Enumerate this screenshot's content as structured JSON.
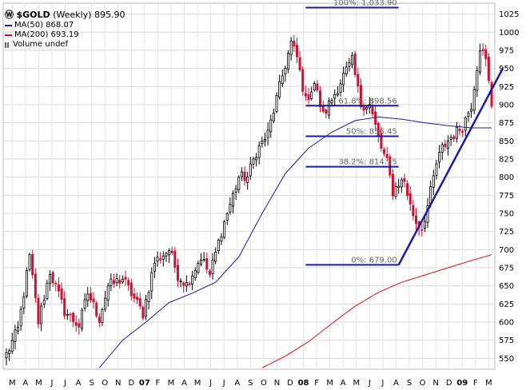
{
  "title": {
    "icon": "logo-W-icon",
    "symbol": "$GOLD",
    "period": "(Weekly)",
    "last": "895.90"
  },
  "legend": [
    {
      "label": "MA(50)",
      "value": "868.07",
      "color": "#1a1aa8"
    },
    {
      "label": "MA(200)",
      "value": "693.19",
      "color": "#dd1111"
    },
    {
      "label": "Volume",
      "value": "undef",
      "color": "#666666"
    }
  ],
  "chart_data": {
    "type": "candlestick",
    "y_range": [
      535,
      1040
    ],
    "y_ticks": [
      "550",
      "575",
      "600",
      "625",
      "650",
      "675",
      "700",
      "725",
      "750",
      "775",
      "800",
      "825",
      "850",
      "875",
      "900",
      "925",
      "950",
      "975",
      "1000",
      "1025"
    ],
    "x_labels": [
      "M",
      "A",
      "M",
      "J",
      "J",
      "A",
      "S",
      "O",
      "N",
      "D",
      "07",
      "F",
      "M",
      "A",
      "M",
      "J",
      "J",
      "A",
      "S",
      "O",
      "N",
      "D",
      "08",
      "F",
      "M",
      "A",
      "M",
      "J",
      "J",
      "A",
      "S",
      "O",
      "N",
      "D",
      "09",
      "F",
      "M"
    ],
    "colors": {
      "up": "#000000",
      "down": "#cc1133",
      "ma50": "#1a1aa8",
      "ma200": "#dd1111",
      "fib": "#1a1aa8"
    },
    "waypoints": [
      [
        0,
        555
      ],
      [
        4,
        590
      ],
      [
        8,
        690
      ],
      [
        11,
        600
      ],
      [
        15,
        670
      ],
      [
        20,
        615
      ],
      [
        25,
        595
      ],
      [
        28,
        640
      ],
      [
        32,
        605
      ],
      [
        35,
        650
      ],
      [
        40,
        660
      ],
      [
        47,
        612
      ],
      [
        51,
        683
      ],
      [
        56,
        700
      ],
      [
        59,
        665
      ],
      [
        62,
        652
      ],
      [
        67,
        690
      ],
      [
        70,
        665
      ],
      [
        74,
        725
      ],
      [
        80,
        800
      ],
      [
        83,
        800
      ],
      [
        86,
        835
      ],
      [
        90,
        860
      ],
      [
        95,
        940
      ],
      [
        98,
        985
      ],
      [
        100,
        965
      ],
      [
        103,
        905
      ],
      [
        106,
        930
      ],
      [
        109,
        885
      ],
      [
        113,
        915
      ],
      [
        116,
        940
      ],
      [
        119,
        960
      ],
      [
        122,
        900
      ],
      [
        125,
        900
      ],
      [
        127,
        870
      ],
      [
        129,
        840
      ],
      [
        131,
        820
      ],
      [
        133,
        780
      ],
      [
        135,
        792
      ],
      [
        137,
        795
      ],
      [
        139,
        760
      ],
      [
        141,
        738
      ],
      [
        143,
        730
      ],
      [
        145,
        760
      ],
      [
        148,
        818
      ],
      [
        150,
        840
      ],
      [
        153,
        855
      ],
      [
        157,
        870
      ],
      [
        160,
        900
      ],
      [
        163,
        980
      ],
      [
        165,
        960
      ],
      [
        167,
        900
      ]
    ],
    "ma50": [
      [
        32,
        537
      ],
      [
        40,
        575
      ],
      [
        48,
        600
      ],
      [
        56,
        627
      ],
      [
        64,
        640
      ],
      [
        72,
        655
      ],
      [
        80,
        690
      ],
      [
        88,
        750
      ],
      [
        96,
        805
      ],
      [
        104,
        840
      ],
      [
        112,
        862
      ],
      [
        120,
        878
      ],
      [
        128,
        883
      ],
      [
        136,
        880
      ],
      [
        144,
        875
      ],
      [
        152,
        871
      ],
      [
        160,
        868
      ],
      [
        167,
        868
      ]
    ],
    "ma200": [
      [
        88,
        537
      ],
      [
        96,
        553
      ],
      [
        104,
        573
      ],
      [
        112,
        598
      ],
      [
        120,
        622
      ],
      [
        128,
        641
      ],
      [
        136,
        655
      ],
      [
        144,
        665
      ],
      [
        152,
        675
      ],
      [
        160,
        685
      ],
      [
        167,
        693
      ]
    ],
    "fib_levels": [
      {
        "label": "100%: 1,033.90",
        "value": 1033.9
      },
      {
        "label": "61.8%: 898.56",
        "value": 898.56
      },
      {
        "label": "50%: 856.45",
        "value": 856.45
      },
      {
        "label": "38.2%: 814.35",
        "value": 814.35
      },
      {
        "label": "0%: 679.00",
        "value": 679.0
      }
    ],
    "trendline": {
      "from": [
        679,
        "Nov 2008"
      ],
      "to": [
        950,
        "Mar 2009"
      ]
    }
  }
}
